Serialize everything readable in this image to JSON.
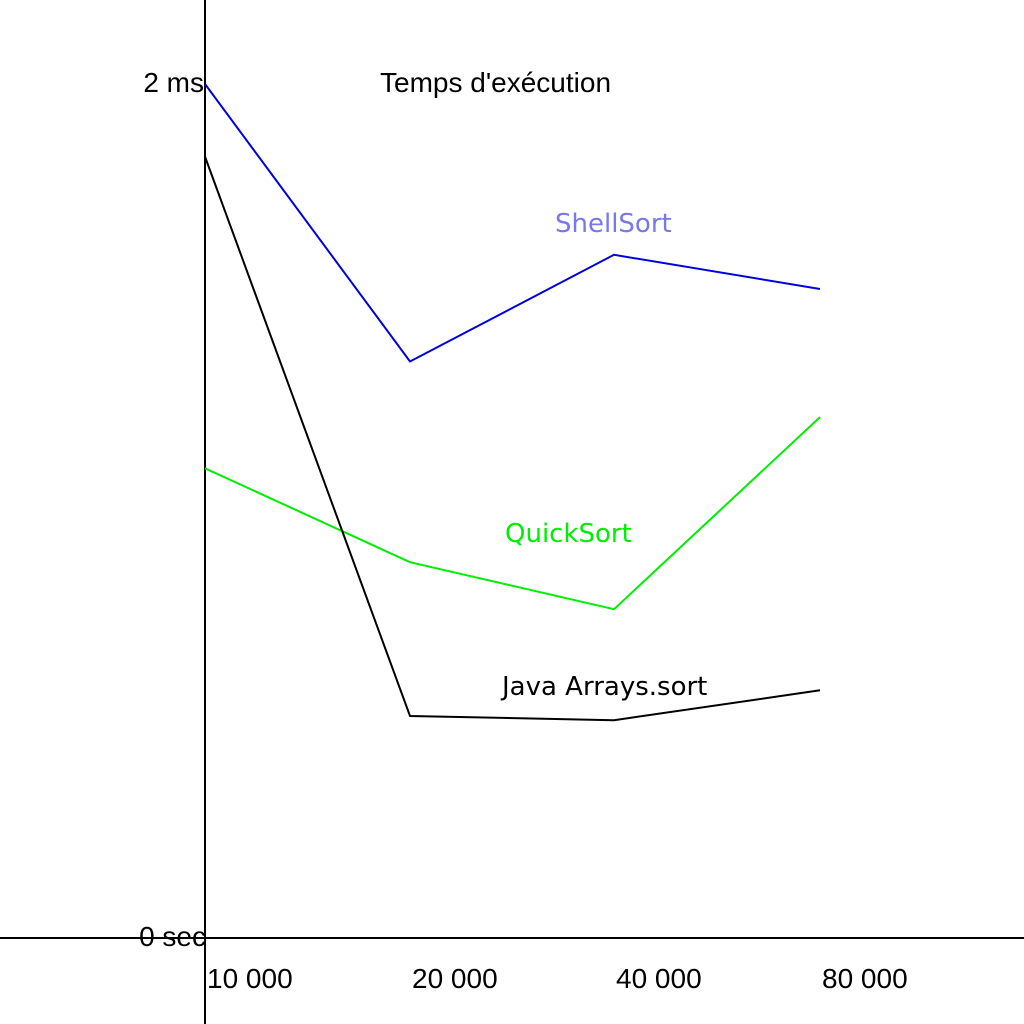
{
  "chart_data": {
    "type": "line",
    "title": "Temps d'exécution",
    "categories": [
      "10 000",
      "20 000",
      "40 000",
      "80 000"
    ],
    "y_tick_labels": {
      "top": "2 ms",
      "bottom": "0 sec"
    },
    "ylim": [
      0,
      2
    ],
    "grid": false,
    "series": [
      {
        "name": "ShellSort",
        "color": "#0000dd",
        "label_color": "#7777ee",
        "values": [
          2.0,
          1.35,
          1.6,
          1.52
        ]
      },
      {
        "name": "QuickSort",
        "color": "#00ee00",
        "label_color": "#00ee00",
        "values": [
          1.1,
          0.88,
          0.77,
          1.22
        ]
      },
      {
        "name": "Java Arrays.sort",
        "color": "#000000",
        "label_color": "#000000",
        "values": [
          1.83,
          0.52,
          0.51,
          0.58
        ]
      }
    ]
  }
}
